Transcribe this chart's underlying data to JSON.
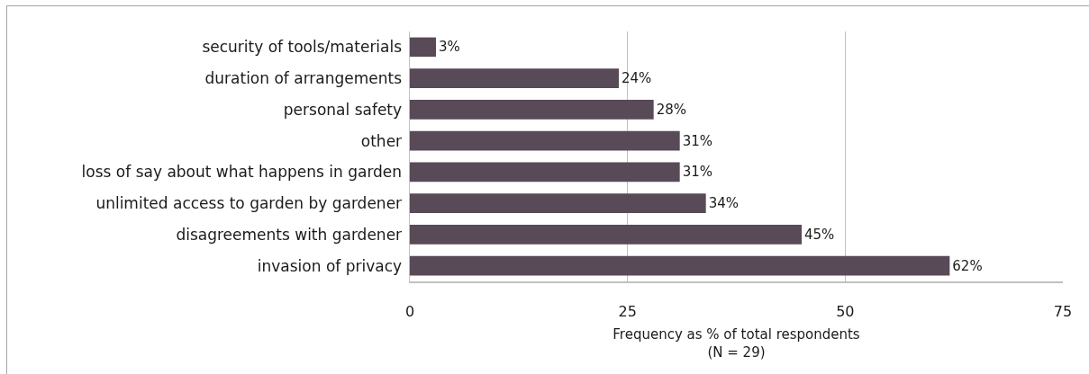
{
  "chart_data": {
    "type": "bar",
    "orientation": "horizontal",
    "categories": [
      "security of tools/materials",
      "duration of arrangements",
      "personal safety",
      "other",
      "loss of say about what happens in garden",
      "unlimited access to garden by gardener",
      "disagreements with gardener",
      "invasion of privacy"
    ],
    "values": [
      3,
      24,
      28,
      31,
      31,
      34,
      45,
      62
    ],
    "color": "#584a57",
    "value_labels": [
      "3%",
      "24%",
      "28%",
      "31%",
      "31%",
      "34%",
      "45%",
      "62%"
    ],
    "xlim": [
      0,
      75
    ],
    "xticks": [
      0,
      25,
      50,
      75
    ],
    "grid": "x",
    "xlabel": "Frequency as % of total respondents\n(N = 29)"
  }
}
